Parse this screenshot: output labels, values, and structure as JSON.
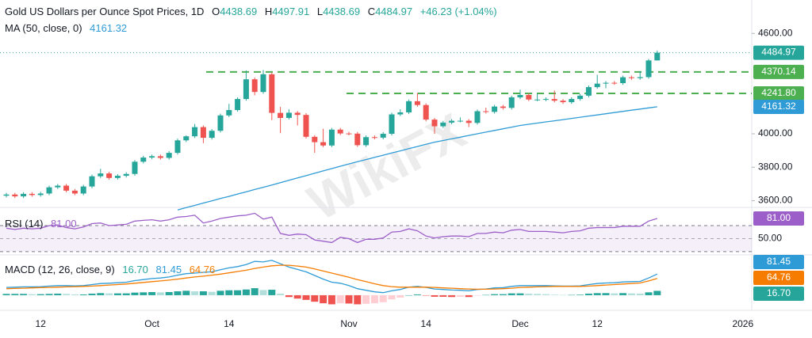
{
  "header": {
    "title": "Gold US Dollars per Ounce Spot Prices, 1D",
    "o": "O",
    "h": "H",
    "l": "L",
    "c": "C",
    "change": "+46.23 (+1.04%)",
    "watermark": "WikiFX"
  },
  "chart_data": {
    "type": "candlestick",
    "categories": [
      null,
      null,
      null,
      null,
      "12",
      null,
      null,
      null,
      null,
      null,
      null,
      null,
      null,
      null,
      null,
      null,
      null,
      "Oct",
      null,
      null,
      null,
      null,
      null,
      null,
      null,
      null,
      "14",
      null,
      null,
      null,
      null,
      null,
      null,
      null,
      null,
      null,
      null,
      null,
      null,
      null,
      "Nov",
      null,
      null,
      null,
      null,
      null,
      null,
      null,
      null,
      "14",
      null,
      null,
      null,
      null,
      null,
      null,
      null,
      null,
      null,
      null,
      "Dec",
      null,
      null,
      null,
      null,
      null,
      null,
      null,
      null,
      "12",
      null,
      null,
      null,
      null,
      null,
      null,
      null,
      null,
      null,
      null,
      null,
      null,
      null,
      null,
      null,
      null,
      "2026"
    ],
    "open": [
      3630,
      3637,
      3626,
      3641,
      3634,
      3643,
      3680,
      3690,
      3660,
      3643,
      3685,
      3746,
      3763,
      3736,
      3749,
      3760,
      3833,
      3858,
      3866,
      3856,
      3886,
      3961,
      3985,
      4040,
      3976,
      4018,
      4110,
      4142,
      4208,
      4326,
      4250,
      4356,
      4125,
      4095,
      4126,
      4113,
      3982,
      3950,
      3930,
      4025,
      4002,
      4001,
      3932,
      3980,
      3977,
      4000,
      4116,
      4128,
      4195,
      4172,
      4085,
      4045,
      4067,
      4078,
      4078,
      4065,
      4135,
      4131,
      4163,
      4155,
      4218,
      4232,
      4205,
      4205,
      4208,
      4198,
      4189,
      4208,
      4228,
      4279,
      4300,
      4305,
      4303,
      4338,
      4333,
      4339,
      4438.69,
      null,
      null,
      null,
      null,
      null,
      null,
      null,
      null,
      null,
      null
    ],
    "high": [
      3647,
      3647,
      3651,
      3651,
      3653,
      3690,
      3700,
      3700,
      3670,
      3695,
      3756,
      3791,
      3773,
      3759,
      3770,
      3843,
      3868,
      3876,
      3876,
      3896,
      3971,
      3991,
      4059,
      4050,
      4028,
      4120,
      4179,
      4218,
      4379,
      4336,
      4381,
      4366,
      4161,
      4146,
      4136,
      4123,
      3992,
      4030,
      4035,
      4035,
      4012,
      4011,
      3990,
      3990,
      4010,
      4126,
      4146,
      4205,
      4245,
      4182,
      4095,
      4077,
      4088,
      4098,
      4088,
      4145,
      4156,
      4173,
      4173,
      4228,
      4264,
      4242,
      4241,
      4218,
      4259,
      4208,
      4218,
      4238,
      4289,
      4353,
      4315,
      4315,
      4348,
      4348,
      4375,
      4448,
      4497.91,
      null,
      null,
      null,
      null,
      null,
      null,
      null,
      null,
      null,
      null
    ],
    "low": [
      3620,
      3616,
      3616,
      3624,
      3624,
      3633,
      3670,
      3650,
      3633,
      3633,
      3675,
      3736,
      3726,
      3726,
      3739,
      3750,
      3823,
      3848,
      3846,
      3846,
      3876,
      3951,
      3975,
      3944,
      3966,
      4008,
      4100,
      4132,
      4198,
      4230,
      4240,
      4082,
      4004,
      4085,
      4050,
      3972,
      3886,
      3920,
      3920,
      3992,
      3991,
      3922,
      3922,
      3967,
      3967,
      3990,
      4106,
      4118,
      4162,
      4075,
      4000,
      4035,
      4057,
      4068,
      4040,
      4055,
      4121,
      4121,
      4145,
      4145,
      4208,
      4195,
      4195,
      4195,
      4188,
      4179,
      4179,
      4198,
      4218,
      4269,
      4272,
      4293,
      4293,
      4323,
      4323,
      4329,
      4438.69,
      null,
      null,
      null,
      null,
      null,
      null,
      null,
      null,
      null,
      null
    ],
    "close": [
      3637,
      3626,
      3641,
      3634,
      3643,
      3680,
      3690,
      3660,
      3643,
      3685,
      3746,
      3763,
      3736,
      3749,
      3760,
      3833,
      3858,
      3866,
      3856,
      3886,
      3961,
      3985,
      4040,
      3976,
      4018,
      4110,
      4142,
      4208,
      4326,
      4250,
      4356,
      4125,
      4095,
      4126,
      4113,
      3982,
      3950,
      3930,
      4025,
      4002,
      4001,
      3932,
      3980,
      3977,
      4000,
      4116,
      4128,
      4195,
      4172,
      4085,
      4045,
      4067,
      4078,
      4078,
      4065,
      4135,
      4131,
      4163,
      4155,
      4218,
      4232,
      4205,
      4205,
      4208,
      4198,
      4189,
      4208,
      4228,
      4279,
      4300,
      4305,
      4303,
      4338,
      4333,
      4339,
      4438.74,
      4484.97,
      null,
      null,
      null,
      null,
      null,
      null,
      null,
      null,
      null,
      null
    ],
    "up_color": "#26a69a",
    "down_color": "#ef5350",
    "ylim": [
      3560,
      4800
    ],
    "yticks": [
      {
        "value": 3600,
        "label": "3600.00"
      },
      {
        "value": 3800,
        "label": "3800.00"
      },
      {
        "value": 4000,
        "label": "4000.00"
      },
      {
        "value": 4600,
        "label": "4600.00"
      }
    ],
    "grid": false,
    "levels": [
      4370.14,
      {
        "value": 4241.8,
        "label": "4241.80"
      }
    ],
    "level_color": "#4caf50",
    "ma": {
      "name": "MA (50, close, 0)",
      "color": "#2e9bd6",
      "values": [
        null,
        null,
        null,
        null,
        null,
        null,
        null,
        null,
        null,
        null,
        null,
        null,
        null,
        null,
        null,
        null,
        null,
        null,
        null,
        null,
        3545,
        3559,
        3572,
        3586,
        3599,
        3613,
        3626,
        3640,
        3653,
        3667,
        3680,
        3694,
        3708,
        3722,
        3736,
        3750,
        3764,
        3778,
        3792,
        3806,
        3820,
        3833,
        3846,
        3859,
        3872,
        3885,
        3898,
        3911,
        3924,
        3937,
        3950,
        3960,
        3970,
        3980,
        3990,
        4000,
        4010,
        4020,
        4030,
        4040,
        4050,
        4057,
        4064,
        4071,
        4078,
        4085,
        4092,
        4099,
        4106,
        4113,
        4120,
        4127,
        4134,
        4141,
        4148,
        4155,
        4161.32,
        null,
        null,
        null,
        null,
        null,
        null,
        null,
        null,
        null,
        null
      ]
    },
    "rsi": {
      "name": "RSI (14)",
      "color": "#9c5fc9",
      "ylim": [
        25,
        98
      ],
      "bands": [
        30,
        70
      ],
      "yticks": [
        {
          "value": 50,
          "label": "50.00"
        }
      ],
      "values": [
        66,
        64,
        66,
        65,
        66,
        70,
        71,
        67,
        65,
        68,
        73,
        74,
        70,
        71,
        72,
        77,
        78,
        79,
        77,
        79,
        83,
        84,
        86,
        74,
        77,
        81,
        83,
        85,
        86,
        89,
        80,
        83,
        58,
        55,
        57,
        56,
        48,
        46,
        44,
        52,
        50,
        44,
        49,
        49,
        51,
        60,
        61,
        65,
        62,
        54,
        51,
        53,
        54,
        54,
        53,
        58,
        58,
        60,
        59,
        63,
        64,
        61,
        61,
        61,
        60,
        59,
        61,
        62,
        66,
        67,
        67,
        67,
        69,
        69,
        69,
        77,
        81,
        null,
        null,
        null,
        null,
        null,
        null,
        null,
        null,
        null,
        null
      ],
      "value_labels": [
        null,
        null,
        null,
        null,
        null,
        null,
        null,
        null,
        null,
        null,
        null,
        null,
        null,
        null,
        null,
        null,
        null,
        null,
        null,
        null,
        null,
        null,
        null,
        null,
        null,
        null,
        null,
        null,
        null,
        null,
        null,
        null,
        null,
        null,
        null,
        null,
        null,
        null,
        null,
        null,
        null,
        null,
        null,
        null,
        null,
        null,
        null,
        null,
        null,
        null,
        null,
        null,
        null,
        null,
        null,
        null,
        null,
        null,
        null,
        null,
        null,
        null,
        null,
        null,
        null,
        null,
        null,
        null,
        null,
        null,
        null,
        null,
        null,
        null,
        null,
        null,
        "81.00",
        null,
        null,
        null,
        null,
        null,
        null,
        null,
        null,
        null,
        null
      ]
    },
    "macd": {
      "name": "MACD (12, 26, close, 9)",
      "ylim": [
        -58,
        155
      ],
      "histogram": {
        "color": "#26a69a",
        "values": [
          5,
          5,
          5,
          4,
          4,
          5,
          6,
          5,
          3,
          3,
          6,
          8,
          7,
          7,
          7,
          10,
          11,
          12,
          11,
          12,
          15,
          17,
          15,
          15,
          13,
          17,
          19,
          19,
          22,
          27,
          20,
          21,
          6,
          -7,
          -13,
          -18,
          -25,
          -31,
          -35,
          -31,
          -32,
          -35,
          -33,
          -31,
          -27,
          -16,
          -9,
          0,
          3,
          -1,
          -6,
          -6,
          -7,
          -6,
          -7,
          -1,
          1,
          4,
          4,
          7,
          7,
          6,
          5,
          4,
          2,
          1,
          1,
          2,
          6,
          8,
          8,
          7,
          8,
          7,
          6,
          11,
          16.7,
          null,
          null,
          null,
          null,
          null,
          null,
          null,
          null,
          null,
          null
        ],
        "value_labels": [
          null,
          null,
          null,
          null,
          null,
          null,
          null,
          null,
          null,
          null,
          null,
          null,
          null,
          null,
          null,
          null,
          null,
          null,
          null,
          null,
          null,
          null,
          null,
          null,
          null,
          null,
          null,
          null,
          null,
          null,
          null,
          null,
          null,
          null,
          null,
          null,
          null,
          null,
          null,
          null,
          null,
          null,
          null,
          null,
          null,
          null,
          null,
          null,
          null,
          null,
          null,
          null,
          null,
          null,
          null,
          null,
          null,
          null,
          null,
          null,
          null,
          null,
          null,
          null,
          null,
          null,
          null,
          null,
          null,
          null,
          null,
          null,
          null,
          null,
          null,
          null,
          "16.70",
          null,
          null,
          null,
          null,
          null,
          null,
          null,
          null,
          null,
          null
        ]
      },
      "macd": {
        "color": "#2e9bd6",
        "values": [
          30,
          31,
          32,
          32,
          33,
          35,
          37,
          37,
          36,
          37,
          41,
          45,
          46,
          48,
          50,
          56,
          60,
          64,
          66,
          70,
          77,
          83,
          85,
          88,
          90,
          98,
          105,
          110,
          118,
          130,
          128,
          134,
          121,
          108,
          99,
          90,
          76,
          62,
          50,
          46,
          37,
          25,
          19,
          13,
          10,
          17,
          22,
          31,
          34,
          30,
          24,
          22,
          20,
          19,
          17,
          22,
          24,
          28,
          29,
          34,
          37,
          37,
          37,
          37,
          36,
          35,
          35,
          36,
          41,
          45,
          47,
          48,
          51,
          52,
          53,
          66,
          81.45,
          null,
          null,
          null,
          null,
          null,
          null,
          null,
          null,
          null,
          null
        ]
      },
      "signal": {
        "color": "#f57c00",
        "values": [
          25,
          26,
          27,
          28,
          29,
          30,
          31,
          32,
          33,
          34,
          35,
          37,
          39,
          41,
          43,
          46,
          49,
          52,
          55,
          58,
          62,
          66,
          70,
          73,
          77,
          81,
          86,
          91,
          96,
          103,
          108,
          113,
          115,
          115,
          112,
          108,
          101,
          93,
          85,
          77,
          69,
          60,
          52,
          44,
          37,
          33,
          31,
          31,
          31,
          31,
          30,
          28,
          27,
          25,
          24,
          23,
          23,
          24,
          25,
          27,
          30,
          31,
          32,
          33,
          34,
          34,
          34,
          34,
          35,
          37,
          39,
          41,
          43,
          45,
          47,
          55,
          64.76,
          null,
          null,
          null,
          null,
          null,
          null,
          null,
          null,
          null,
          null
        ]
      }
    }
  }
}
